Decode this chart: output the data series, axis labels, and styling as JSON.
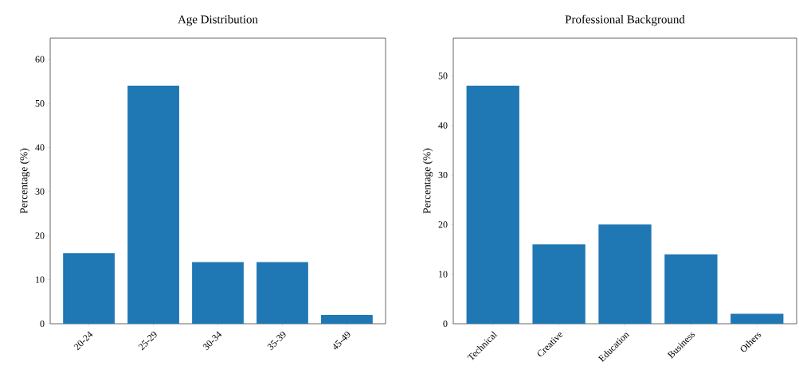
{
  "chart_data": [
    {
      "type": "bar",
      "title": "Age Distribution",
      "ylabel": "Percentage (%)",
      "categories": [
        "20-24",
        "25-29",
        "30-34",
        "35-39",
        "45-49"
      ],
      "values": [
        16,
        54,
        14,
        14,
        2
      ],
      "color": "#1f77b4",
      "ylim": [
        0,
        64.8
      ],
      "yticks": [
        0,
        10,
        20,
        30,
        40,
        50,
        60
      ]
    },
    {
      "type": "bar",
      "title": "Professional Background",
      "ylabel": "Percentage (%)",
      "categories": [
        "Technical",
        "Creative",
        "Education",
        "Business",
        "Others"
      ],
      "values": [
        48,
        16,
        20,
        14,
        2
      ],
      "color": "#1f77b4",
      "ylim": [
        0,
        57.6
      ],
      "yticks": [
        0,
        10,
        20,
        30,
        40,
        50
      ]
    }
  ]
}
